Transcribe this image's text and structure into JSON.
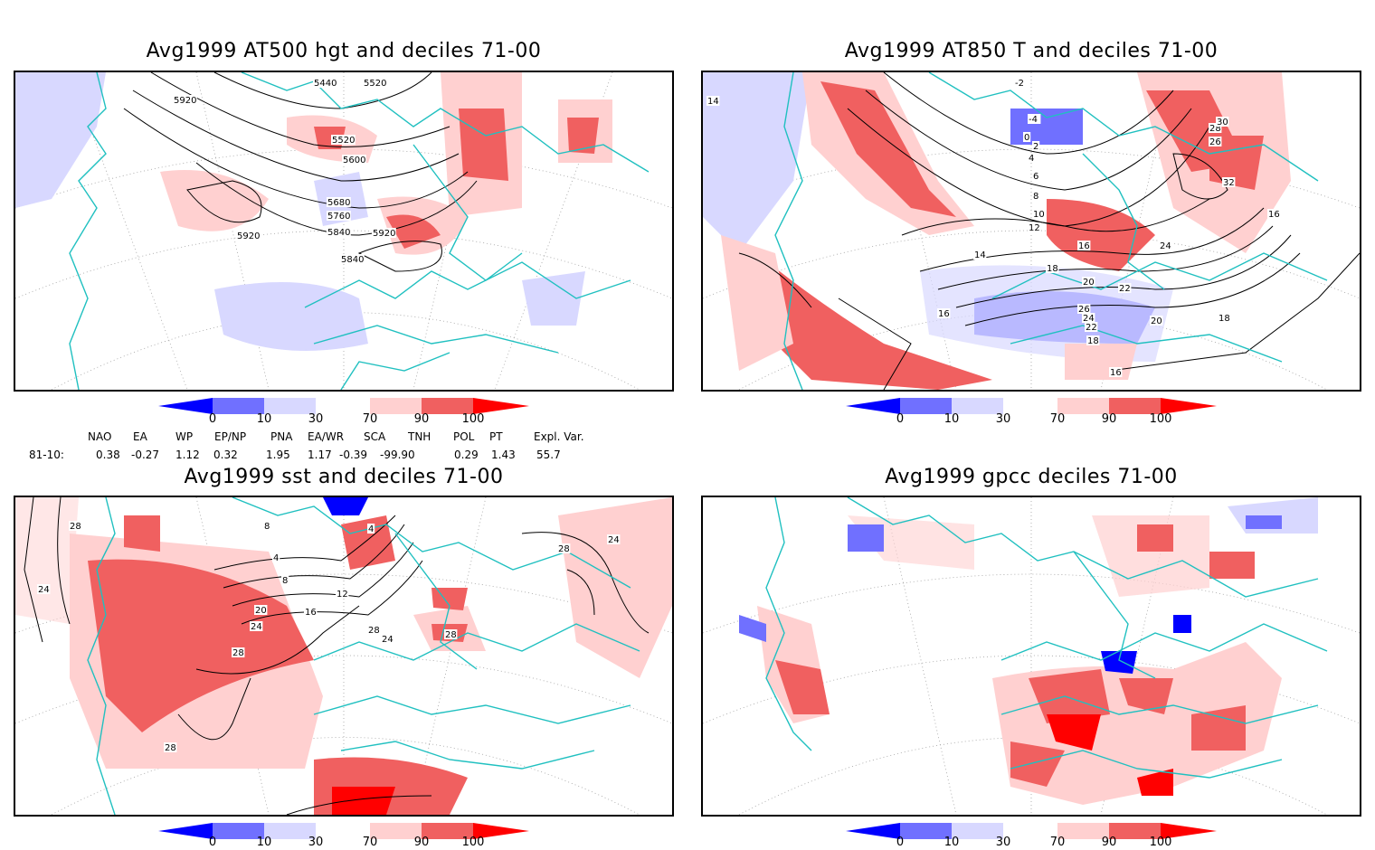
{
  "panels": [
    {
      "title": "Avg1999 AT500 hgt and deciles 71-00",
      "contour_labels": [
        "5440",
        "5520",
        "5920",
        "5520",
        "5600",
        "5680",
        "5760",
        "5840",
        "5920",
        "5920",
        "5840"
      ]
    },
    {
      "title": "Avg1999 AT850 T and deciles 71-00",
      "contour_labels": [
        "-2",
        "-4",
        "0",
        "2",
        "4",
        "6",
        "8",
        "10",
        "12",
        "14",
        "16",
        "16",
        "18",
        "20",
        "22",
        "24",
        "26",
        "28",
        "30",
        "32",
        "26",
        "24",
        "22",
        "20",
        "18",
        "16",
        "16",
        "18",
        "14"
      ]
    },
    {
      "title": "Avg1999 sst and deciles 71-00",
      "contour_labels": [
        "28",
        "24",
        "4",
        "8",
        "12",
        "16",
        "20",
        "24",
        "28",
        "24",
        "28",
        "28",
        "28",
        "24",
        "28",
        "4",
        "8"
      ]
    },
    {
      "title": "Avg1999 gpcc deciles 71-00",
      "contour_labels": []
    }
  ],
  "colorbar": {
    "ticks": [
      "0",
      "10",
      "30",
      "70",
      "90",
      "100"
    ],
    "colors": {
      "below10_dark": "#0000ff",
      "d10_30": "#7070ff",
      "d30_50": "#d8d8ff",
      "neutral": "#ffffff",
      "d70_90": "#ffd0d0",
      "d90_100": "#f06060",
      "above100": "#ff0000"
    }
  },
  "indices": {
    "headers": [
      "NAO",
      "EA",
      "WP",
      "EP/NP",
      "PNA",
      "EA/WR",
      "SCA",
      "TNH",
      "POL",
      "PT",
      "Expl. Var."
    ],
    "row_label": "81-10:",
    "values": [
      "0.38",
      "-0.27",
      "1.12",
      "0.32",
      "1.95",
      "1.17",
      "-0.39",
      "-99.90",
      "0.29",
      "1.43",
      "55.7"
    ]
  },
  "map_colors": {
    "coast": "#20c0c0",
    "contour": "#000000",
    "grid": "#999999"
  }
}
